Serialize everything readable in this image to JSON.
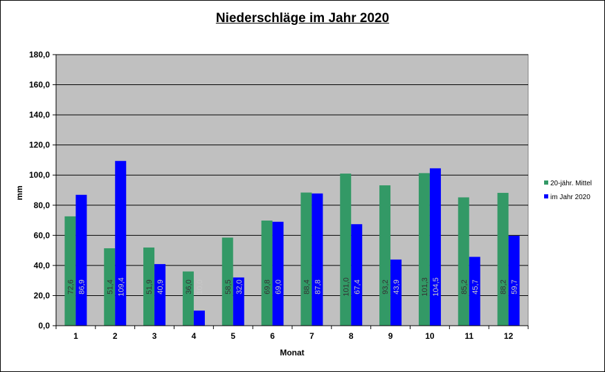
{
  "chart_data": {
    "type": "bar",
    "title": "Niederschläge im Jahr  2020",
    "xlabel": "Monat",
    "ylabel": "mm",
    "ylim": [
      0,
      180
    ],
    "ytick_step": 20,
    "ytick_labels": [
      "0,0",
      "20,0",
      "40,0",
      "60,0",
      "80,0",
      "100,0",
      "120,0",
      "140,0",
      "160,0",
      "180,0"
    ],
    "categories": [
      "1",
      "2",
      "3",
      "4",
      "5",
      "6",
      "7",
      "8",
      "9",
      "10",
      "11",
      "12"
    ],
    "grid": true,
    "legend_position": "right",
    "plot_background": "#c0c0c0",
    "series": [
      {
        "name": "20-jähr. Mittel",
        "color": "#339966",
        "label_color": "#333333",
        "values": [
          72.6,
          51.4,
          51.9,
          36.0,
          58.5,
          69.8,
          88.4,
          101.0,
          93.2,
          101.3,
          85.2,
          88.2
        ],
        "labels": [
          "72,6",
          "51,4",
          "51,9",
          "36,0",
          "58,5",
          "69,8",
          "88,4",
          "101,0",
          "93,2",
          "101,3",
          "85,2",
          "88,2"
        ]
      },
      {
        "name": "im Jahr 2020",
        "color": "#0000ff",
        "label_color": "#c8c8c8",
        "values": [
          86.9,
          109.4,
          40.9,
          10.0,
          32.0,
          69.0,
          87.8,
          67.4,
          43.9,
          104.5,
          45.7,
          59.7
        ],
        "labels": [
          "86,9",
          "109,4",
          "40,9",
          "10,0",
          "32,0",
          "69,0",
          "87,8",
          "67,4",
          "43,9",
          "104,5",
          "45,7",
          "59,7"
        ]
      }
    ]
  }
}
